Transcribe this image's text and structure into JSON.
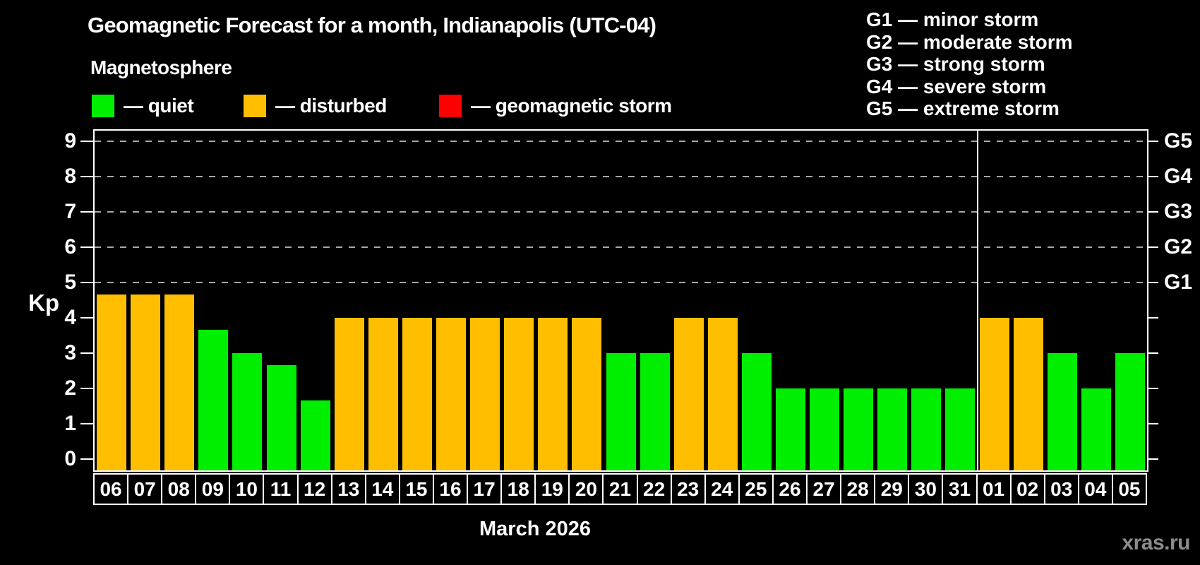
{
  "title": "Geomagnetic Forecast for a month, Indianapolis (UTC-04)",
  "subtitle": "Magnetosphere",
  "watermark": "xras.ru",
  "legend": {
    "items": [
      {
        "key": "quiet",
        "label": "— quiet",
        "color": "#00EE00"
      },
      {
        "key": "disturbed",
        "label": "— disturbed",
        "color": "#FFBE00"
      },
      {
        "key": "storm",
        "label": "— geomagnetic storm",
        "color": "#FF0000"
      }
    ]
  },
  "g_scale_legend": {
    "lines": [
      "G1 — minor storm",
      "G2 — moderate storm",
      "G3 — strong storm",
      "G4 — severe storm",
      "G5 — extreme storm"
    ]
  },
  "chart_data": {
    "type": "bar",
    "title": "Geomagnetic Forecast for a month, Indianapolis (UTC-04)",
    "xlabel": "March 2026",
    "ylabel": "Kp",
    "ylim": [
      -0.32,
      9.32
    ],
    "yticks": [
      0,
      1,
      2,
      3,
      4,
      5,
      6,
      7,
      8,
      9
    ],
    "gridlines_at": [
      5,
      6,
      7,
      8,
      9
    ],
    "grid": "dashed horizontal lines at G-storm levels only",
    "legend_position": "top-left",
    "right_axis": [
      {
        "label": "G1",
        "kp": 5
      },
      {
        "label": "G2",
        "kp": 6
      },
      {
        "label": "G3",
        "kp": 7
      },
      {
        "label": "G4",
        "kp": 8
      },
      {
        "label": "G5",
        "kp": 9
      }
    ],
    "month_divider_after_index": 25,
    "days": [
      {
        "label": "06",
        "kp": 4.67,
        "status": "disturbed"
      },
      {
        "label": "07",
        "kp": 4.67,
        "status": "disturbed"
      },
      {
        "label": "08",
        "kp": 4.67,
        "status": "disturbed"
      },
      {
        "label": "09",
        "kp": 3.67,
        "status": "quiet"
      },
      {
        "label": "10",
        "kp": 3,
        "status": "quiet"
      },
      {
        "label": "11",
        "kp": 2.67,
        "status": "quiet"
      },
      {
        "label": "12",
        "kp": 1.67,
        "status": "quiet"
      },
      {
        "label": "13",
        "kp": 4,
        "status": "disturbed"
      },
      {
        "label": "14",
        "kp": 4,
        "status": "disturbed"
      },
      {
        "label": "15",
        "kp": 4,
        "status": "disturbed"
      },
      {
        "label": "16",
        "kp": 4,
        "status": "disturbed"
      },
      {
        "label": "17",
        "kp": 4,
        "status": "disturbed"
      },
      {
        "label": "18",
        "kp": 4,
        "status": "disturbed"
      },
      {
        "label": "19",
        "kp": 4,
        "status": "disturbed"
      },
      {
        "label": "20",
        "kp": 4,
        "status": "disturbed"
      },
      {
        "label": "21",
        "kp": 3,
        "status": "quiet"
      },
      {
        "label": "22",
        "kp": 3,
        "status": "quiet"
      },
      {
        "label": "23",
        "kp": 4,
        "status": "disturbed"
      },
      {
        "label": "24",
        "kp": 4,
        "status": "disturbed"
      },
      {
        "label": "25",
        "kp": 3,
        "status": "quiet"
      },
      {
        "label": "26",
        "kp": 2,
        "status": "quiet"
      },
      {
        "label": "27",
        "kp": 2,
        "status": "quiet"
      },
      {
        "label": "28",
        "kp": 2,
        "status": "quiet"
      },
      {
        "label": "29",
        "kp": 2,
        "status": "quiet"
      },
      {
        "label": "30",
        "kp": 2,
        "status": "quiet"
      },
      {
        "label": "31",
        "kp": 2,
        "status": "quiet"
      },
      {
        "label": "01",
        "kp": 4,
        "status": "disturbed"
      },
      {
        "label": "02",
        "kp": 4,
        "status": "disturbed"
      },
      {
        "label": "03",
        "kp": 3,
        "status": "quiet"
      },
      {
        "label": "04",
        "kp": 2,
        "status": "quiet"
      },
      {
        "label": "05",
        "kp": 3,
        "status": "quiet"
      }
    ]
  }
}
